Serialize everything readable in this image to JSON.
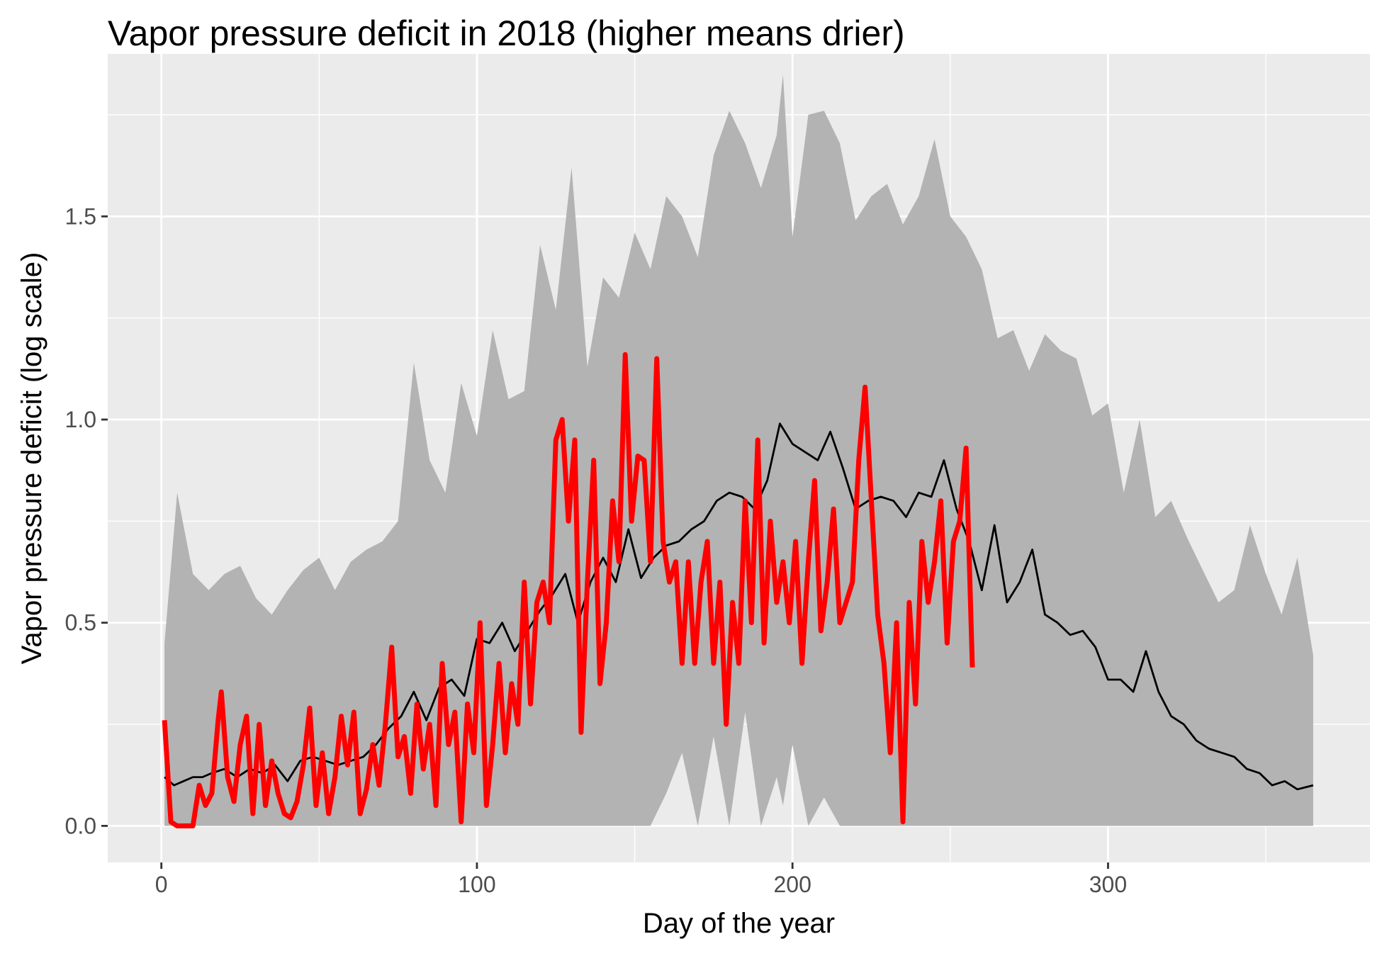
{
  "chart_data": {
    "type": "line",
    "title": "Vapor pressure deficit in 2018 (higher means drier)",
    "xlabel": "Day of the year",
    "ylabel": "Vapor pressure deficit (log scale)",
    "xlim": [
      -17,
      383
    ],
    "ylim": [
      -0.09,
      1.9
    ],
    "x_ticks": [
      0,
      100,
      200,
      300
    ],
    "y_ticks": [
      0.0,
      0.5,
      1.0,
      1.5
    ],
    "x_tick_labels": [
      "0",
      "100",
      "200",
      "300"
    ],
    "y_tick_labels": [
      "0.0",
      "0.5",
      "1.0",
      "1.5"
    ],
    "grid": true,
    "legend": "none",
    "colors": {
      "panel": "#ebebeb",
      "grid": "#ffffff",
      "band": "#b3b3b3",
      "mean_line": "#000000",
      "year_line": "#ff0000"
    },
    "band": {
      "x": [
        1,
        5,
        10,
        15,
        20,
        25,
        30,
        35,
        40,
        45,
        50,
        55,
        60,
        65,
        70,
        75,
        80,
        85,
        90,
        95,
        100,
        105,
        110,
        115,
        120,
        125,
        130,
        135,
        140,
        145,
        150,
        155,
        160,
        165,
        170,
        175,
        180,
        185,
        190,
        195,
        197,
        200,
        205,
        210,
        215,
        220,
        225,
        230,
        235,
        240,
        245,
        250,
        255,
        260,
        265,
        270,
        275,
        280,
        285,
        290,
        295,
        300,
        305,
        310,
        315,
        320,
        325,
        330,
        335,
        340,
        345,
        350,
        355,
        360,
        365
      ],
      "upper": [
        0.45,
        0.82,
        0.62,
        0.58,
        0.62,
        0.64,
        0.56,
        0.52,
        0.58,
        0.63,
        0.66,
        0.58,
        0.65,
        0.68,
        0.7,
        0.75,
        1.14,
        0.9,
        0.82,
        1.09,
        0.96,
        1.22,
        1.05,
        1.07,
        1.43,
        1.27,
        1.62,
        1.13,
        1.35,
        1.3,
        1.46,
        1.37,
        1.55,
        1.5,
        1.4,
        1.65,
        1.76,
        1.68,
        1.57,
        1.7,
        1.85,
        1.45,
        1.75,
        1.76,
        1.68,
        1.49,
        1.55,
        1.58,
        1.48,
        1.55,
        1.69,
        1.5,
        1.45,
        1.37,
        1.2,
        1.22,
        1.12,
        1.21,
        1.17,
        1.15,
        1.01,
        1.04,
        0.82,
        1.0,
        0.76,
        0.8,
        0.71,
        0.63,
        0.55,
        0.58,
        0.74,
        0.62,
        0.52,
        0.66,
        0.42
      ],
      "lower": [
        0.0,
        0.0,
        0.0,
        0.0,
        0.0,
        0.0,
        0.0,
        0.0,
        0.0,
        0.0,
        0.0,
        0.0,
        0.0,
        0.0,
        0.0,
        0.0,
        0.0,
        0.0,
        0.0,
        0.0,
        0.0,
        0.0,
        0.0,
        0.0,
        0.0,
        0.0,
        0.0,
        0.0,
        0.0,
        0.0,
        0.0,
        0.0,
        0.08,
        0.18,
        0.0,
        0.22,
        0.0,
        0.28,
        0.0,
        0.12,
        0.05,
        0.2,
        0.0,
        0.07,
        0.0,
        0.0,
        0.0,
        0.0,
        0.0,
        0.0,
        0.0,
        0.0,
        0.0,
        0.0,
        0.0,
        0.0,
        0.0,
        0.0,
        0.0,
        0.0,
        0.0,
        0.0,
        0.0,
        0.0,
        0.0,
        0.0,
        0.0,
        0.0,
        0.0,
        0.0,
        0.0,
        0.0,
        0.0,
        0.0,
        0.0
      ]
    },
    "series": [
      {
        "x": [
          1,
          4,
          7,
          10,
          13,
          16,
          20,
          24,
          28,
          32,
          36,
          40,
          44,
          48,
          52,
          56,
          60,
          64,
          68,
          72,
          76,
          80,
          84,
          88,
          92,
          96,
          100,
          104,
          108,
          112,
          116,
          120,
          124,
          128,
          132,
          136,
          140,
          144,
          148,
          152,
          156,
          160,
          164,
          168,
          172,
          176,
          180,
          184,
          188,
          192,
          196,
          200,
          204,
          208,
          212,
          216,
          220,
          224,
          228,
          232,
          236,
          240,
          244,
          248,
          252,
          256,
          260,
          264,
          268,
          272,
          276,
          280,
          284,
          288,
          292,
          296,
          300,
          304,
          308,
          312,
          316,
          320,
          324,
          328,
          332,
          336,
          340,
          344,
          348,
          352,
          356,
          360,
          365
        ],
        "values": [
          0.12,
          0.1,
          0.11,
          0.12,
          0.12,
          0.13,
          0.14,
          0.12,
          0.14,
          0.13,
          0.15,
          0.11,
          0.16,
          0.17,
          0.16,
          0.15,
          0.16,
          0.17,
          0.2,
          0.24,
          0.27,
          0.33,
          0.26,
          0.34,
          0.36,
          0.32,
          0.46,
          0.45,
          0.5,
          0.43,
          0.48,
          0.53,
          0.57,
          0.62,
          0.5,
          0.6,
          0.66,
          0.6,
          0.73,
          0.61,
          0.66,
          0.69,
          0.7,
          0.73,
          0.75,
          0.8,
          0.82,
          0.81,
          0.78,
          0.85,
          0.99,
          0.94,
          0.92,
          0.9,
          0.97,
          0.88,
          0.78,
          0.8,
          0.81,
          0.8,
          0.76,
          0.82,
          0.81,
          0.9,
          0.78,
          0.7,
          0.58,
          0.74,
          0.55,
          0.6,
          0.68,
          0.52,
          0.5,
          0.47,
          0.48,
          0.44,
          0.36,
          0.36,
          0.33,
          0.43,
          0.33,
          0.27,
          0.25,
          0.21,
          0.19,
          0.18,
          0.17,
          0.14,
          0.13,
          0.1,
          0.11,
          0.09,
          0.1
        ],
        "color": "#000000"
      },
      {
        "x": [
          1,
          3,
          5,
          8,
          10,
          12,
          14,
          16,
          18,
          19,
          21,
          23,
          25,
          27,
          29,
          31,
          33,
          35,
          37,
          39,
          41,
          43,
          45,
          47,
          49,
          51,
          53,
          55,
          57,
          59,
          61,
          63,
          65,
          67,
          69,
          71,
          73,
          75,
          77,
          79,
          81,
          83,
          85,
          87,
          89,
          91,
          93,
          95,
          97,
          99,
          101,
          103,
          105,
          107,
          109,
          111,
          113,
          115,
          117,
          119,
          121,
          123,
          125,
          127,
          129,
          131,
          133,
          135,
          137,
          139,
          141,
          143,
          145,
          147,
          149,
          151,
          153,
          155,
          157,
          159,
          161,
          163,
          165,
          167,
          169,
          171,
          173,
          175,
          177,
          179,
          181,
          183,
          185,
          187,
          189,
          191,
          193,
          195,
          197,
          199,
          201,
          203,
          205,
          207,
          209,
          211,
          213,
          215,
          217,
          219,
          221,
          223,
          225,
          227,
          229,
          231,
          233,
          235,
          237,
          239,
          241,
          243,
          245,
          247,
          249,
          251,
          253,
          255,
          257
        ],
        "values": [
          0.26,
          0.01,
          0.0,
          0.0,
          0.0,
          0.1,
          0.05,
          0.08,
          0.26,
          0.33,
          0.12,
          0.06,
          0.2,
          0.27,
          0.03,
          0.25,
          0.05,
          0.16,
          0.08,
          0.03,
          0.02,
          0.06,
          0.15,
          0.29,
          0.05,
          0.18,
          0.03,
          0.12,
          0.27,
          0.15,
          0.28,
          0.03,
          0.09,
          0.2,
          0.1,
          0.25,
          0.44,
          0.17,
          0.22,
          0.08,
          0.3,
          0.14,
          0.25,
          0.05,
          0.4,
          0.2,
          0.28,
          0.01,
          0.3,
          0.18,
          0.5,
          0.05,
          0.2,
          0.4,
          0.18,
          0.35,
          0.25,
          0.6,
          0.3,
          0.55,
          0.6,
          0.5,
          0.95,
          1.0,
          0.75,
          0.95,
          0.23,
          0.6,
          0.9,
          0.35,
          0.5,
          0.8,
          0.65,
          1.16,
          0.75,
          0.91,
          0.9,
          0.65,
          1.15,
          0.7,
          0.6,
          0.65,
          0.4,
          0.65,
          0.4,
          0.6,
          0.7,
          0.4,
          0.6,
          0.25,
          0.55,
          0.4,
          0.8,
          0.5,
          0.95,
          0.45,
          0.75,
          0.55,
          0.65,
          0.5,
          0.7,
          0.4,
          0.65,
          0.85,
          0.48,
          0.6,
          0.78,
          0.5,
          0.55,
          0.6,
          0.9,
          1.08,
          0.8,
          0.52,
          0.4,
          0.18,
          0.5,
          0.01,
          0.55,
          0.3,
          0.7,
          0.55,
          0.65,
          0.8,
          0.45,
          0.7,
          0.75,
          0.93,
          0.39
        ],
        "color": "#ff0000"
      }
    ]
  }
}
